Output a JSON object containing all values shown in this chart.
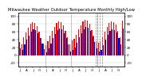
{
  "title": "Milwaukee Weather Outdoor Temperature Monthly High/Low",
  "background_color": "#ffffff",
  "ylim": [
    -30,
    110
  ],
  "yticks": [
    -20,
    0,
    20,
    40,
    60,
    80,
    100
  ],
  "yticklabels": [
    "-20",
    "0",
    "20",
    "40",
    "60",
    "80",
    "100"
  ],
  "high_color": "#ff0000",
  "low_color": "#0000cc",
  "highs": [
    34,
    28,
    45,
    58,
    70,
    80,
    84,
    83,
    74,
    60,
    44,
    30,
    26,
    35,
    50,
    62,
    72,
    82,
    86,
    84,
    76,
    62,
    46,
    28,
    38,
    42,
    52,
    66,
    76,
    86,
    91,
    88,
    80,
    64,
    50,
    36,
    31,
    36,
    46,
    60,
    73,
    83,
    87,
    85,
    78,
    62,
    46,
    88
  ],
  "lows": [
    18,
    14,
    28,
    40,
    50,
    60,
    66,
    65,
    56,
    44,
    30,
    16,
    8,
    18,
    30,
    44,
    54,
    64,
    68,
    66,
    57,
    44,
    28,
    10,
    14,
    20,
    32,
    46,
    56,
    67,
    72,
    70,
    62,
    48,
    34,
    18,
    10,
    14,
    26,
    40,
    52,
    62,
    67,
    65,
    58,
    44,
    28,
    68
  ],
  "dashed_cols": [
    35,
    36,
    37,
    38
  ],
  "tick_fontsize": 3.0,
  "title_fontsize": 3.8,
  "bar_width": 0.42,
  "grid_color": "#cccccc"
}
